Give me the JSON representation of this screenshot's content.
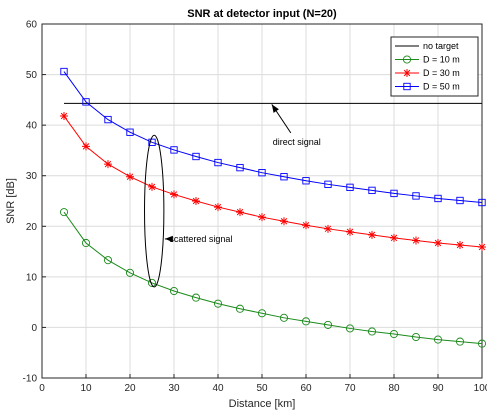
{
  "chart_data": {
    "type": "line",
    "title": "SNR at detector input (N=20)",
    "xlabel": "Distance [km]",
    "ylabel": "SNR [dB]",
    "xlim": [
      0,
      100
    ],
    "ylim": [
      -10,
      60
    ],
    "xticks": [
      "0",
      "10",
      "20",
      "30",
      "40",
      "50",
      "60",
      "70",
      "80",
      "90",
      "100"
    ],
    "yticks": [
      "-10",
      "0",
      "10",
      "20",
      "30",
      "40",
      "50",
      "60"
    ],
    "grid": true,
    "legend_position": "top-right",
    "x": [
      5,
      10,
      15,
      20,
      25,
      30,
      35,
      40,
      45,
      50,
      55,
      60,
      65,
      70,
      75,
      80,
      85,
      90,
      95,
      100
    ],
    "series": [
      {
        "name": "no target",
        "color": "#000000",
        "marker": "none",
        "values": [
          44.3,
          44.3,
          44.3,
          44.3,
          44.3,
          44.3,
          44.3,
          44.3,
          44.3,
          44.3,
          44.3,
          44.3,
          44.3,
          44.3,
          44.3,
          44.3,
          44.3,
          44.3,
          44.3,
          44.3
        ]
      },
      {
        "name": "D = 10 m",
        "color": "#1a8a1a",
        "marker": "circle",
        "values": [
          22.8,
          16.7,
          13.3,
          10.8,
          8.8,
          7.2,
          5.9,
          4.7,
          3.7,
          2.8,
          1.9,
          1.2,
          0.5,
          -0.2,
          -0.8,
          -1.3,
          -1.9,
          -2.4,
          -2.8,
          -3.2
        ]
      },
      {
        "name": "D = 30 m",
        "color": "#ff0000",
        "marker": "asterisk",
        "values": [
          41.8,
          35.8,
          32.3,
          29.8,
          27.8,
          26.3,
          25.0,
          23.8,
          22.8,
          21.8,
          21.0,
          20.2,
          19.5,
          18.9,
          18.3,
          17.7,
          17.2,
          16.7,
          16.3,
          15.9
        ]
      },
      {
        "name": "D = 50 m",
        "color": "#0000ff",
        "marker": "square",
        "values": [
          50.6,
          44.6,
          41.1,
          38.6,
          36.6,
          35.1,
          33.8,
          32.6,
          31.6,
          30.6,
          29.8,
          29.0,
          28.3,
          27.7,
          27.1,
          26.5,
          26.0,
          25.5,
          25.1,
          24.7
        ]
      }
    ],
    "annotations": [
      {
        "text": "direct signal",
        "text_at": [
          52,
          36.5
        ],
        "arrow_to": [
          52,
          44.3
        ]
      },
      {
        "text": "scattered signal",
        "text_at": [
          28.5,
          17.5
        ],
        "ellipse_center": [
          25.5,
          23.0
        ],
        "ellipse_semi_axes": [
          2.2,
          15.0
        ]
      }
    ]
  }
}
